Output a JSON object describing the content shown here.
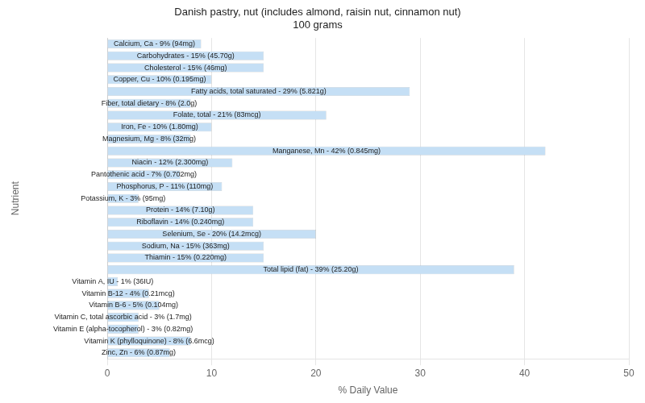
{
  "chart_data": {
    "type": "bar",
    "orientation": "horizontal",
    "title": "Danish pastry, nut (includes almond, raisin nut, cinnamon nut)\n100 grams",
    "xlabel": "% Daily Value",
    "ylabel": "Nutrient",
    "categories": [
      "Calcium, Ca - 9% (94mg)",
      "Carbohydrates - 15% (45.70g)",
      "Cholesterol - 15% (46mg)",
      "Copper, Cu - 10% (0.195mg)",
      "Fatty acids, total saturated - 29% (5.821g)",
      "Fiber, total dietary - 8% (2.0g)",
      "Folate, total - 21% (83mcg)",
      "Iron, Fe - 10% (1.80mg)",
      "Magnesium, Mg - 8% (32mg)",
      "Manganese, Mn - 42% (0.845mg)",
      "Niacin - 12% (2.300mg)",
      "Pantothenic acid - 7% (0.702mg)",
      "Phosphorus, P - 11% (110mg)",
      "Potassium, K - 3% (95mg)",
      "Protein - 14% (7.10g)",
      "Riboflavin - 14% (0.240mg)",
      "Selenium, Se - 20% (14.2mcg)",
      "Sodium, Na - 15% (363mg)",
      "Thiamin - 15% (0.220mg)",
      "Total lipid (fat) - 39% (25.20g)",
      "Vitamin A, IU - 1% (36IU)",
      "Vitamin B-12 - 4% (0.21mcg)",
      "Vitamin B-6 - 5% (0.104mg)",
      "Vitamin C, total ascorbic acid - 3% (1.7mg)",
      "Vitamin E (alpha-tocopherol) - 3% (0.82mg)",
      "Vitamin K (phylloquinone) - 8% (6.6mcg)",
      "Zinc, Zn - 6% (0.87mg)"
    ],
    "values": [
      9,
      15,
      15,
      10,
      29,
      8,
      21,
      10,
      8,
      42,
      12,
      7,
      11,
      3,
      14,
      14,
      20,
      15,
      15,
      39,
      1,
      4,
      5,
      3,
      3,
      8,
      6
    ],
    "color": "#c5dff5",
    "xlim": [
      0,
      50
    ],
    "xticks": [
      0,
      10,
      20,
      30,
      40,
      50
    ],
    "grid": true,
    "tick_labels": "x"
  }
}
